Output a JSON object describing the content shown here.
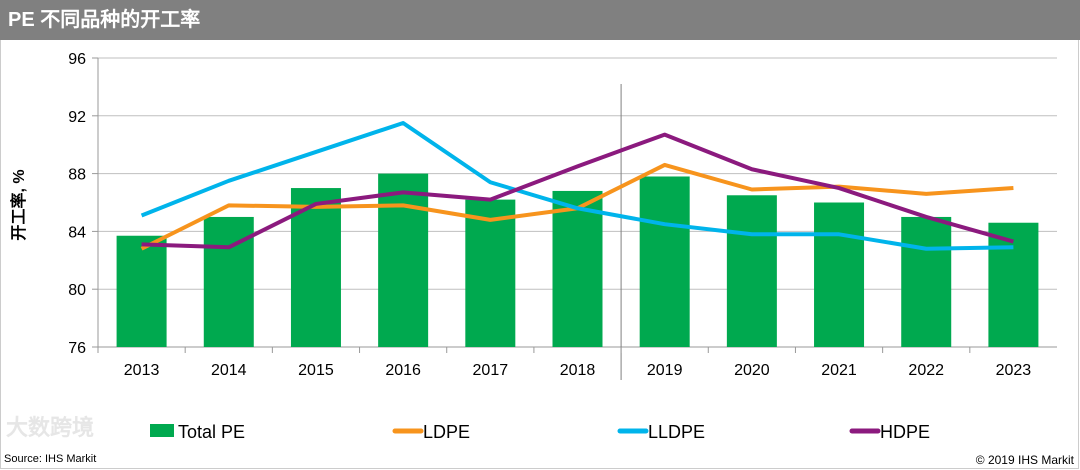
{
  "header": {
    "title": "PE 不同品种的开工率"
  },
  "footer": {
    "source": "Source: IHS Markit",
    "copyright": "© 2019 IHS Markit"
  },
  "watermark": "大数跨境",
  "chart_data": {
    "type": "bar+line",
    "title": "PE 不同品种的开工率",
    "ylabel": "开工率, %",
    "xlabel": "",
    "ylim": [
      76,
      96
    ],
    "yticks": [
      76,
      80,
      84,
      88,
      92,
      96
    ],
    "grid": true,
    "legend": "bottom",
    "divider_after": "2018",
    "categories": [
      "2013",
      "2014",
      "2015",
      "2016",
      "2017",
      "2018",
      "2019",
      "2020",
      "2021",
      "2022",
      "2023"
    ],
    "series": [
      {
        "name": "Total PE",
        "type": "bar",
        "color": "#00A94F",
        "values": [
          83.7,
          85.0,
          87.0,
          88.0,
          86.2,
          86.8,
          87.8,
          86.5,
          86.0,
          85.0,
          84.6
        ]
      },
      {
        "name": "LDPE",
        "type": "line",
        "color": "#F7941D",
        "values": [
          82.8,
          85.8,
          85.7,
          85.8,
          84.8,
          85.6,
          88.6,
          86.9,
          87.1,
          86.6,
          87.0
        ]
      },
      {
        "name": "LLDPE",
        "type": "line",
        "color": "#00B4EB",
        "values": [
          85.1,
          87.5,
          89.5,
          91.5,
          87.4,
          85.6,
          84.5,
          83.8,
          83.8,
          82.8,
          82.9
        ]
      },
      {
        "name": "HDPE",
        "type": "line",
        "color": "#8B1A7E",
        "values": [
          83.1,
          82.9,
          85.9,
          86.7,
          86.2,
          88.5,
          90.7,
          88.3,
          87.0,
          85.0,
          83.3
        ]
      }
    ]
  }
}
